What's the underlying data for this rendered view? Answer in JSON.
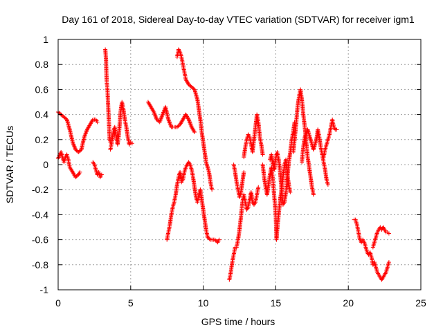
{
  "chart_data": {
    "type": "scatter",
    "title": "Day 161 of 2018, Sidereal Day-to-day VTEC variation (SDTVAR) for receiver igm1",
    "xlabel": "GPS time / hours",
    "ylabel": "SDTVAR / TECUs",
    "xlim": [
      0,
      25
    ],
    "ylim": [
      -1,
      1
    ],
    "xticks": [
      0,
      5,
      10,
      15,
      20,
      25
    ],
    "yticks": [
      -1,
      -0.8,
      -0.6,
      -0.4,
      -0.2,
      0,
      0.2,
      0.4,
      0.6,
      0.8,
      1
    ],
    "grid": true,
    "legend": "none",
    "marker": "plus",
    "color": "#ff0000",
    "series": [
      {
        "name": "s1",
        "points": [
          [
            0.0,
            0.42
          ],
          [
            0.2,
            0.4
          ],
          [
            0.4,
            0.38
          ],
          [
            0.6,
            0.36
          ],
          [
            0.8,
            0.28
          ],
          [
            1.0,
            0.18
          ],
          [
            1.2,
            0.12
          ],
          [
            1.4,
            0.1
          ],
          [
            1.6,
            0.12
          ],
          [
            1.8,
            0.22
          ],
          [
            2.0,
            0.28
          ],
          [
            2.2,
            0.32
          ],
          [
            2.4,
            0.36
          ],
          [
            2.6,
            0.36
          ],
          [
            2.7,
            0.34
          ]
        ]
      },
      {
        "name": "s2",
        "points": [
          [
            0.0,
            0.05
          ],
          [
            0.2,
            0.1
          ],
          [
            0.3,
            0.06
          ],
          [
            0.4,
            0.02
          ],
          [
            0.5,
            0.06
          ],
          [
            0.6,
            0.08
          ],
          [
            0.7,
            0.04
          ],
          [
            0.8,
            -0.02
          ],
          [
            1.0,
            -0.06
          ],
          [
            1.2,
            -0.1
          ],
          [
            1.4,
            -0.08
          ],
          [
            1.5,
            -0.06
          ]
        ]
      },
      {
        "name": "s3",
        "points": [
          [
            2.4,
            0.02
          ],
          [
            2.5,
            0.0
          ],
          [
            2.6,
            -0.04
          ],
          [
            2.7,
            -0.08
          ],
          [
            2.8,
            -0.06
          ],
          [
            2.9,
            -0.1
          ],
          [
            3.0,
            -0.08
          ]
        ]
      },
      {
        "name": "s4",
        "points": [
          [
            3.25,
            0.92
          ],
          [
            3.3,
            0.84
          ],
          [
            3.32,
            0.75
          ],
          [
            3.35,
            0.66
          ],
          [
            3.4,
            0.6
          ],
          [
            3.45,
            0.46
          ],
          [
            3.5,
            0.34
          ],
          [
            3.55,
            0.2
          ],
          [
            3.6,
            0.18
          ]
        ]
      },
      {
        "name": "s5",
        "points": [
          [
            3.6,
            0.12
          ],
          [
            3.7,
            0.18
          ],
          [
            3.8,
            0.26
          ],
          [
            3.9,
            0.3
          ],
          [
            4.0,
            0.22
          ],
          [
            4.1,
            0.16
          ],
          [
            4.2,
            0.26
          ],
          [
            4.3,
            0.42
          ],
          [
            4.4,
            0.5
          ],
          [
            4.5,
            0.44
          ],
          [
            4.6,
            0.36
          ],
          [
            4.7,
            0.3
          ],
          [
            4.8,
            0.22
          ],
          [
            4.9,
            0.16
          ],
          [
            5.0,
            0.18
          ],
          [
            5.1,
            0.17
          ]
        ]
      },
      {
        "name": "s6",
        "points": [
          [
            6.2,
            0.5
          ],
          [
            6.4,
            0.46
          ],
          [
            6.6,
            0.42
          ],
          [
            6.8,
            0.36
          ],
          [
            7.0,
            0.34
          ],
          [
            7.2,
            0.4
          ],
          [
            7.4,
            0.46
          ],
          [
            7.6,
            0.36
          ],
          [
            7.8,
            0.3
          ],
          [
            8.0,
            0.3
          ],
          [
            8.2,
            0.3
          ],
          [
            8.4,
            0.32
          ],
          [
            8.6,
            0.36
          ],
          [
            8.8,
            0.4
          ],
          [
            9.0,
            0.36
          ],
          [
            9.2,
            0.3
          ],
          [
            9.4,
            0.26
          ]
        ]
      },
      {
        "name": "s7",
        "points": [
          [
            8.2,
            0.86
          ],
          [
            8.3,
            0.92
          ],
          [
            8.4,
            0.9
          ],
          [
            8.5,
            0.86
          ],
          [
            8.6,
            0.8
          ],
          [
            8.7,
            0.74
          ],
          [
            8.8,
            0.68
          ],
          [
            9.0,
            0.64
          ],
          [
            9.2,
            0.62
          ],
          [
            9.4,
            0.6
          ],
          [
            9.6,
            0.52
          ],
          [
            9.7,
            0.44
          ],
          [
            9.8,
            0.36
          ],
          [
            9.9,
            0.26
          ],
          [
            10.0,
            0.18
          ],
          [
            10.1,
            0.1
          ],
          [
            10.2,
            0.02
          ],
          [
            10.4,
            -0.06
          ],
          [
            10.5,
            -0.14
          ],
          [
            10.6,
            -0.2
          ]
        ]
      },
      {
        "name": "s8",
        "points": [
          [
            7.5,
            -0.6
          ],
          [
            7.6,
            -0.54
          ],
          [
            7.7,
            -0.48
          ],
          [
            7.8,
            -0.4
          ],
          [
            7.9,
            -0.34
          ],
          [
            8.0,
            -0.3
          ],
          [
            8.1,
            -0.24
          ],
          [
            8.2,
            -0.16
          ],
          [
            8.3,
            -0.1
          ],
          [
            8.4,
            -0.06
          ],
          [
            8.5,
            -0.14
          ],
          [
            8.6,
            -0.12
          ],
          [
            8.7,
            -0.06
          ],
          [
            8.8,
            -0.02
          ],
          [
            8.9,
            0.0
          ],
          [
            9.0,
            0.02
          ],
          [
            9.1,
            0.0
          ],
          [
            9.2,
            -0.04
          ],
          [
            9.3,
            -0.1
          ],
          [
            9.4,
            -0.18
          ],
          [
            9.5,
            -0.26
          ],
          [
            9.6,
            -0.3
          ],
          [
            9.7,
            -0.24
          ],
          [
            9.8,
            -0.2
          ]
        ]
      },
      {
        "name": "s9",
        "points": [
          [
            9.8,
            -0.2
          ],
          [
            9.9,
            -0.28
          ],
          [
            10.0,
            -0.36
          ],
          [
            10.1,
            -0.44
          ],
          [
            10.2,
            -0.52
          ],
          [
            10.3,
            -0.58
          ],
          [
            10.5,
            -0.6
          ],
          [
            10.8,
            -0.6
          ],
          [
            11.0,
            -0.62
          ],
          [
            11.1,
            -0.6
          ]
        ]
      },
      {
        "name": "s10",
        "points": [
          [
            11.8,
            -0.92
          ],
          [
            11.9,
            -0.86
          ],
          [
            12.0,
            -0.78
          ],
          [
            12.1,
            -0.72
          ],
          [
            12.2,
            -0.66
          ],
          [
            12.3,
            -0.66
          ],
          [
            12.4,
            -0.6
          ],
          [
            12.5,
            -0.52
          ],
          [
            12.6,
            -0.42
          ],
          [
            12.7,
            -0.3
          ],
          [
            12.8,
            -0.24
          ],
          [
            12.9,
            -0.3
          ],
          [
            13.0,
            -0.36
          ],
          [
            13.1,
            -0.34
          ],
          [
            13.2,
            -0.28
          ],
          [
            13.3,
            -0.22
          ],
          [
            13.4,
            -0.3
          ],
          [
            13.5,
            -0.32
          ],
          [
            13.6,
            -0.3
          ],
          [
            13.7,
            -0.24
          ],
          [
            13.8,
            -0.18
          ]
        ]
      },
      {
        "name": "s11",
        "points": [
          [
            12.1,
            0.0
          ],
          [
            12.2,
            -0.06
          ],
          [
            12.3,
            -0.14
          ],
          [
            12.4,
            -0.2
          ],
          [
            12.5,
            -0.26
          ],
          [
            12.6,
            -0.22
          ],
          [
            12.7,
            -0.14
          ],
          [
            12.8,
            -0.06
          ]
        ]
      },
      {
        "name": "s12",
        "points": [
          [
            12.8,
            0.06
          ],
          [
            12.9,
            0.14
          ],
          [
            13.0,
            0.2
          ],
          [
            13.1,
            0.24
          ],
          [
            13.2,
            0.22
          ],
          [
            13.3,
            0.16
          ],
          [
            13.4,
            0.1
          ],
          [
            13.5,
            0.2
          ],
          [
            13.6,
            0.3
          ],
          [
            13.7,
            0.4
          ],
          [
            13.8,
            0.34
          ],
          [
            13.9,
            0.22
          ],
          [
            14.0,
            0.16
          ],
          [
            14.1,
            0.08
          ]
        ]
      },
      {
        "name": "s13",
        "points": [
          [
            14.1,
            0.0
          ],
          [
            14.2,
            -0.1
          ],
          [
            14.3,
            -0.18
          ],
          [
            14.4,
            -0.24
          ],
          [
            14.5,
            -0.16
          ],
          [
            14.6,
            -0.08
          ],
          [
            14.7,
            -0.02
          ],
          [
            14.8,
            -0.12
          ],
          [
            14.9,
            -0.26
          ],
          [
            15.0,
            -0.4
          ],
          [
            15.05,
            -0.6
          ],
          [
            15.1,
            -0.52
          ],
          [
            15.2,
            -0.4
          ],
          [
            15.3,
            -0.28
          ],
          [
            15.4,
            -0.2
          ],
          [
            15.5,
            -0.1
          ],
          [
            15.6,
            0.0
          ],
          [
            15.7,
            0.04
          ],
          [
            15.8,
            -0.08
          ],
          [
            15.9,
            -0.16
          ],
          [
            16.0,
            -0.22
          ]
        ]
      },
      {
        "name": "s14",
        "points": [
          [
            14.6,
            0.04
          ],
          [
            14.7,
            0.08
          ],
          [
            14.8,
            0.0
          ],
          [
            14.9,
            -0.04
          ],
          [
            15.0,
            0.06
          ],
          [
            15.1,
            0.1
          ],
          [
            15.2,
            0.04
          ],
          [
            15.3,
            -0.06
          ],
          [
            15.4,
            -0.2
          ],
          [
            15.5,
            -0.32
          ],
          [
            15.6,
            -0.3
          ],
          [
            15.7,
            -0.22
          ],
          [
            15.8,
            -0.1
          ],
          [
            15.9,
            0.02
          ],
          [
            16.0,
            0.1
          ],
          [
            16.1,
            0.2
          ],
          [
            16.2,
            0.26
          ],
          [
            16.3,
            0.34
          ]
        ]
      },
      {
        "name": "s15",
        "points": [
          [
            16.2,
            0.1
          ],
          [
            16.3,
            0.2
          ],
          [
            16.4,
            0.32
          ],
          [
            16.5,
            0.46
          ],
          [
            16.6,
            0.54
          ],
          [
            16.7,
            0.6
          ],
          [
            16.8,
            0.52
          ],
          [
            16.9,
            0.4
          ],
          [
            17.0,
            0.3
          ],
          [
            17.1,
            0.18
          ],
          [
            17.2,
            0.06
          ],
          [
            17.3,
            -0.02
          ],
          [
            17.4,
            -0.1
          ],
          [
            17.5,
            -0.18
          ],
          [
            17.6,
            -0.24
          ]
        ]
      },
      {
        "name": "s16",
        "points": [
          [
            16.8,
            0.02
          ],
          [
            16.9,
            0.14
          ],
          [
            17.0,
            0.22
          ],
          [
            17.2,
            0.28
          ],
          [
            17.4,
            0.2
          ],
          [
            17.6,
            0.12
          ],
          [
            17.8,
            0.2
          ],
          [
            17.9,
            0.28
          ],
          [
            18.0,
            0.22
          ],
          [
            18.1,
            0.14
          ],
          [
            18.2,
            0.08
          ],
          [
            18.3,
            0.02
          ],
          [
            18.4,
            -0.04
          ],
          [
            18.5,
            -0.12
          ],
          [
            18.6,
            -0.16
          ]
        ]
      },
      {
        "name": "s17",
        "points": [
          [
            18.3,
            0.06
          ],
          [
            18.4,
            0.12
          ],
          [
            18.5,
            0.16
          ],
          [
            18.6,
            0.2
          ],
          [
            18.7,
            0.24
          ],
          [
            18.8,
            0.3
          ],
          [
            18.9,
            0.36
          ],
          [
            19.0,
            0.3
          ],
          [
            19.1,
            0.28
          ],
          [
            19.2,
            0.28
          ]
        ]
      },
      {
        "name": "s18",
        "points": [
          [
            20.4,
            -0.44
          ],
          [
            20.5,
            -0.44
          ],
          [
            20.6,
            -0.48
          ],
          [
            20.7,
            -0.54
          ],
          [
            20.8,
            -0.6
          ],
          [
            20.9,
            -0.62
          ],
          [
            21.0,
            -0.6
          ],
          [
            21.1,
            -0.62
          ],
          [
            21.2,
            -0.66
          ],
          [
            21.3,
            -0.7
          ],
          [
            21.4,
            -0.72
          ],
          [
            21.5,
            -0.7
          ],
          [
            21.6,
            -0.74
          ],
          [
            21.7,
            -0.8
          ],
          [
            21.8,
            -0.78
          ],
          [
            21.9,
            -0.82
          ],
          [
            22.0,
            -0.86
          ],
          [
            22.1,
            -0.88
          ],
          [
            22.2,
            -0.9
          ],
          [
            22.3,
            -0.92
          ],
          [
            22.4,
            -0.9
          ],
          [
            22.5,
            -0.88
          ],
          [
            22.6,
            -0.86
          ],
          [
            22.7,
            -0.82
          ],
          [
            22.8,
            -0.78
          ]
        ]
      },
      {
        "name": "s19",
        "points": [
          [
            21.7,
            -0.66
          ],
          [
            21.8,
            -0.62
          ],
          [
            21.9,
            -0.58
          ],
          [
            22.0,
            -0.54
          ],
          [
            22.1,
            -0.52
          ],
          [
            22.2,
            -0.5
          ],
          [
            22.3,
            -0.52
          ],
          [
            22.4,
            -0.5
          ],
          [
            22.5,
            -0.52
          ],
          [
            22.6,
            -0.54
          ],
          [
            22.7,
            -0.54
          ],
          [
            22.8,
            -0.55
          ]
        ]
      }
    ]
  }
}
